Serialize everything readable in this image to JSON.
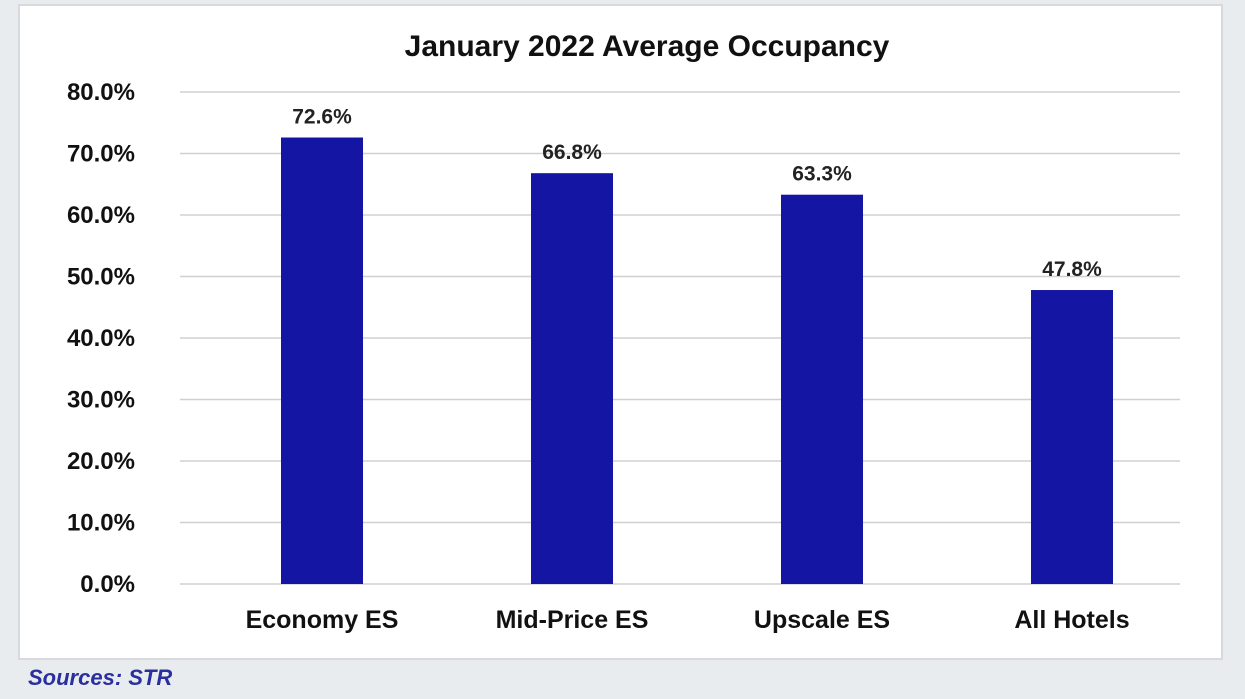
{
  "chart_data": {
    "type": "bar",
    "title": "January 2022 Average Occupancy",
    "categories": [
      "Economy ES",
      "Mid-Price ES",
      "Upscale ES",
      "All Hotels"
    ],
    "values": [
      72.6,
      66.8,
      63.3,
      47.8
    ],
    "data_labels": [
      "72.6%",
      "66.8%",
      "63.3%",
      "47.8%"
    ],
    "y_ticks": [
      0,
      10,
      20,
      30,
      40,
      50,
      60,
      70,
      80
    ],
    "y_tick_labels": [
      "0.0%",
      "10.0%",
      "20.0%",
      "30.0%",
      "40.0%",
      "50.0%",
      "60.0%",
      "70.0%",
      "80.0%"
    ],
    "ylim": [
      0,
      80
    ],
    "xlabel": "",
    "ylabel": "",
    "grid": true,
    "legend": "none",
    "bar_color": "#1515a3"
  },
  "source": "Sources: STR"
}
